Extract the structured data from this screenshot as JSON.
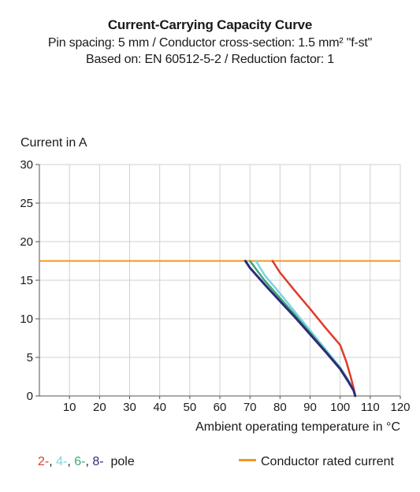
{
  "title": "Current-Carrying Capacity Curve",
  "subtitle1": "Pin spacing: 5 mm / Conductor cross-section: 1.5 mm² \"f-st\"",
  "subtitle2": "Based on: EN 60512-5-2 / Reduction factor: 1",
  "chart_data": {
    "type": "line",
    "ylabel": "Current in A",
    "xlabel": "Ambient operating temperature in °C",
    "xlim": [
      0,
      120
    ],
    "ylim": [
      0,
      30
    ],
    "xticks": [
      10,
      20,
      30,
      40,
      50,
      60,
      70,
      80,
      90,
      100,
      110,
      120
    ],
    "yticks": [
      0,
      5,
      10,
      15,
      20,
      25,
      30
    ],
    "grid": true,
    "series": [
      {
        "name": "2-",
        "color": "#e03a2a",
        "x": [
          77.5,
          80,
          85,
          90,
          95,
          100,
          102,
          103.5,
          104.5,
          105
        ],
        "y": [
          17.5,
          16,
          13.6,
          11.3,
          8.9,
          6.6,
          4.5,
          2.5,
          1,
          0
        ]
      },
      {
        "name": "4-",
        "color": "#7fd3e0",
        "x": [
          72,
          75,
          80,
          85,
          90,
          95,
          100,
          102.5,
          104.5,
          105
        ],
        "y": [
          17.5,
          15.6,
          13.3,
          10.9,
          8.5,
          6.1,
          3.7,
          2.2,
          0.7,
          0
        ]
      },
      {
        "name": "6-",
        "color": "#3aa878",
        "x": [
          70,
          75,
          80,
          85,
          90,
          95,
          100,
          102.5,
          104.5,
          105
        ],
        "y": [
          17.5,
          14.9,
          12.7,
          10.5,
          8.2,
          5.9,
          3.6,
          2.1,
          0.7,
          0
        ]
      },
      {
        "name": "8-",
        "color": "#2e2b78",
        "x": [
          68.5,
          70,
          75,
          80,
          85,
          90,
          95,
          100,
          102.5,
          104.5,
          105
        ],
        "y": [
          17.5,
          16.6,
          14.4,
          12.3,
          10.2,
          8.0,
          5.8,
          3.5,
          2.0,
          0.7,
          0
        ]
      }
    ],
    "reference_line": {
      "name": "Conductor rated current",
      "y": 17.5,
      "color": "#f7941d"
    }
  },
  "legend": {
    "pole_items": [
      {
        "text": "2-",
        "color": "#e03a2a"
      },
      {
        "text": ", ",
        "color": "#1a1a1a"
      },
      {
        "text": "4-",
        "color": "#7fd3e0"
      },
      {
        "text": ", ",
        "color": "#1a1a1a"
      },
      {
        "text": "6-",
        "color": "#3aa878"
      },
      {
        "text": ", ",
        "color": "#1a1a1a"
      },
      {
        "text": "8-",
        "color": "#2e2b78"
      }
    ],
    "pole_suffix": "  pole",
    "rated_label": "Conductor rated current"
  }
}
